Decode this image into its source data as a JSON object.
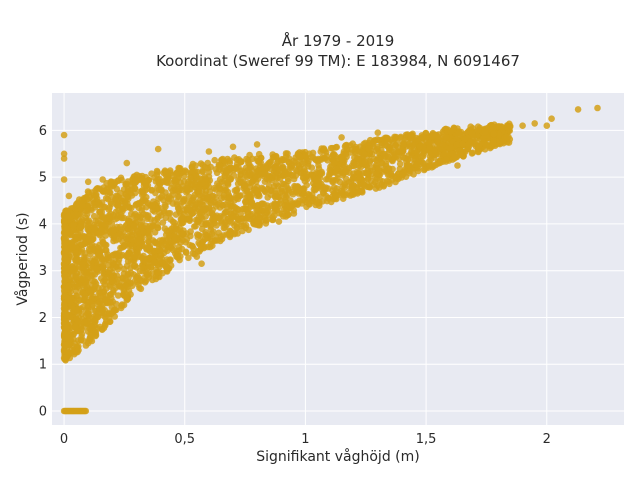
{
  "chart_data": {
    "type": "scatter",
    "title_line1": "År 1979 - 2019",
    "title_line2": "Koordinat (Sweref 99 TM): E 183984, N 6091467",
    "xlabel": "Signifikant våghöjd (m)",
    "ylabel": "Vågperiod (s)",
    "xlim": [
      -0.05,
      2.32
    ],
    "ylim": [
      -0.3,
      6.8
    ],
    "x_ticks": [
      0,
      0.5,
      1,
      1.5,
      2
    ],
    "x_tick_labels": [
      "0",
      "0,5",
      "1",
      "1,5",
      "2"
    ],
    "y_ticks": [
      0,
      1,
      2,
      3,
      4,
      5,
      6
    ],
    "y_tick_labels": [
      "0",
      "1",
      "2",
      "3",
      "4",
      "5",
      "6"
    ],
    "grid": true,
    "colors": {
      "marker": "#d4a017",
      "plot_background": "#e8eaf2",
      "grid": "#ffffff"
    },
    "band": {
      "lower": [
        [
          0.0,
          1.05
        ],
        [
          0.1,
          1.4
        ],
        [
          0.2,
          1.95
        ],
        [
          0.3,
          2.55
        ],
        [
          0.5,
          3.2
        ],
        [
          0.7,
          3.75
        ],
        [
          1.0,
          4.3
        ],
        [
          1.3,
          4.75
        ],
        [
          1.6,
          5.35
        ],
        [
          1.85,
          5.75
        ]
      ],
      "upper": [
        [
          0.0,
          4.25
        ],
        [
          0.1,
          4.7
        ],
        [
          0.2,
          4.95
        ],
        [
          0.4,
          5.15
        ],
        [
          0.6,
          5.35
        ],
        [
          0.8,
          5.5
        ],
        [
          1.0,
          5.55
        ],
        [
          1.2,
          5.75
        ],
        [
          1.4,
          5.9
        ],
        [
          1.6,
          6.05
        ],
        [
          1.85,
          6.15
        ]
      ]
    },
    "zero_cluster": {
      "x_range": [
        0.0,
        0.09
      ],
      "y": 0.0
    },
    "outliers": [
      [
        0.0,
        5.9
      ],
      [
        0.0,
        5.5
      ],
      [
        0.0,
        5.4
      ],
      [
        0.0,
        4.95
      ],
      [
        0.02,
        4.6
      ],
      [
        0.05,
        4.4
      ],
      [
        0.1,
        4.9
      ],
      [
        0.16,
        4.95
      ],
      [
        0.26,
        5.3
      ],
      [
        0.39,
        5.6
      ],
      [
        0.6,
        5.55
      ],
      [
        0.7,
        5.65
      ],
      [
        0.8,
        5.7
      ],
      [
        1.15,
        5.85
      ],
      [
        1.3,
        5.95
      ],
      [
        1.9,
        6.1
      ],
      [
        1.95,
        6.15
      ],
      [
        2.0,
        6.1
      ],
      [
        2.02,
        6.25
      ],
      [
        2.13,
        6.45
      ],
      [
        2.21,
        6.48
      ],
      [
        0.02,
        1.25
      ],
      [
        0.06,
        1.3
      ],
      [
        0.1,
        1.45
      ],
      [
        0.55,
        3.3
      ],
      [
        0.57,
        3.15
      ],
      [
        0.89,
        4.05
      ],
      [
        1.15,
        4.7
      ],
      [
        1.4,
        5.05
      ],
      [
        1.63,
        5.25
      ]
    ]
  }
}
